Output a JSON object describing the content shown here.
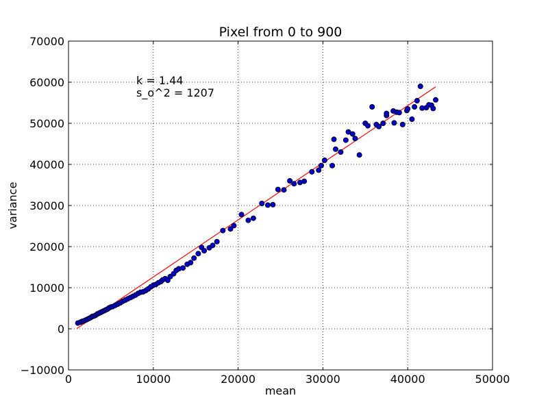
{
  "chart_data": {
    "type": "scatter",
    "title": "Pixel from 0 to 900",
    "xlabel": "mean",
    "ylabel": "variance",
    "xlim": [
      0,
      50000
    ],
    "ylim": [
      -10000,
      70000
    ],
    "xticks": [
      0,
      10000,
      20000,
      30000,
      40000,
      50000
    ],
    "yticks": [
      -10000,
      0,
      10000,
      20000,
      30000,
      40000,
      50000,
      60000,
      70000
    ],
    "grid": true,
    "annotations": [
      "k = 1.44",
      "s_o^2 = 1207"
    ],
    "annotation_anchor": {
      "x": 8000,
      "y": 59500
    },
    "marker_color": "#0000cc",
    "fit_color": "#ff0000",
    "fit_line": {
      "slope": 1.39,
      "intercept": -1300,
      "x_range": [
        1000,
        43300
      ]
    },
    "points": [
      [
        1100,
        1400
      ],
      [
        1400,
        1600
      ],
      [
        1600,
        1800
      ],
      [
        1800,
        1900
      ],
      [
        2000,
        2100
      ],
      [
        2200,
        2300
      ],
      [
        2400,
        2500
      ],
      [
        2600,
        2700
      ],
      [
        2800,
        3000
      ],
      [
        3000,
        3100
      ],
      [
        3200,
        3300
      ],
      [
        3400,
        3600
      ],
      [
        3600,
        3800
      ],
      [
        3800,
        4000
      ],
      [
        4000,
        4200
      ],
      [
        4200,
        4400
      ],
      [
        4400,
        4600
      ],
      [
        4600,
        4800
      ],
      [
        4800,
        5100
      ],
      [
        5000,
        5300
      ],
      [
        5200,
        5400
      ],
      [
        5500,
        5700
      ],
      [
        5800,
        6000
      ],
      [
        6100,
        6300
      ],
      [
        6400,
        6700
      ],
      [
        6700,
        7000
      ],
      [
        7000,
        7300
      ],
      [
        7300,
        7600
      ],
      [
        7600,
        7900
      ],
      [
        7900,
        8200
      ],
      [
        8200,
        8600
      ],
      [
        8500,
        8900
      ],
      [
        8800,
        9000
      ],
      [
        9100,
        9300
      ],
      [
        9400,
        9700
      ],
      [
        9700,
        10200
      ],
      [
        10000,
        10600
      ],
      [
        10300,
        10800
      ],
      [
        10600,
        11200
      ],
      [
        10900,
        11500
      ],
      [
        11100,
        11900
      ],
      [
        11400,
        12200
      ],
      [
        11700,
        11800
      ],
      [
        12000,
        12700
      ],
      [
        12400,
        13400
      ],
      [
        12700,
        14200
      ],
      [
        13000,
        14600
      ],
      [
        13500,
        14800
      ],
      [
        14000,
        15700
      ],
      [
        14400,
        16100
      ],
      [
        14800,
        17200
      ],
      [
        15300,
        18300
      ],
      [
        15700,
        19800
      ],
      [
        16000,
        19000
      ],
      [
        16600,
        19700
      ],
      [
        17000,
        20300
      ],
      [
        17500,
        21200
      ],
      [
        18200,
        23900
      ],
      [
        19100,
        24300
      ],
      [
        19500,
        25100
      ],
      [
        20400,
        27800
      ],
      [
        21200,
        26400
      ],
      [
        21800,
        26900
      ],
      [
        22800,
        30500
      ],
      [
        23500,
        30100
      ],
      [
        24100,
        30200
      ],
      [
        24700,
        33900
      ],
      [
        25400,
        33800
      ],
      [
        26100,
        36000
      ],
      [
        26600,
        35300
      ],
      [
        27300,
        35600
      ],
      [
        27800,
        35900
      ],
      [
        28700,
        38200
      ],
      [
        29500,
        38600
      ],
      [
        29800,
        39700
      ],
      [
        30200,
        41000
      ],
      [
        31100,
        39700
      ],
      [
        31300,
        46100
      ],
      [
        31500,
        43700
      ],
      [
        32100,
        43000
      ],
      [
        32700,
        45900
      ],
      [
        33000,
        47900
      ],
      [
        33500,
        47400
      ],
      [
        33800,
        46300
      ],
      [
        34300,
        42300
      ],
      [
        35000,
        50000
      ],
      [
        35300,
        49400
      ],
      [
        35800,
        54000
      ],
      [
        36300,
        49700
      ],
      [
        36600,
        49200
      ],
      [
        37100,
        50000
      ],
      [
        37500,
        51900
      ],
      [
        37500,
        52400
      ],
      [
        38300,
        53000
      ],
      [
        38400,
        50100
      ],
      [
        38700,
        52700
      ],
      [
        39000,
        52600
      ],
      [
        39400,
        49700
      ],
      [
        39900,
        53100
      ],
      [
        40000,
        53500
      ],
      [
        40500,
        51000
      ],
      [
        40800,
        54000
      ],
      [
        41100,
        55500
      ],
      [
        41500,
        59000
      ],
      [
        41700,
        53700
      ],
      [
        42200,
        53800
      ],
      [
        42500,
        54500
      ],
      [
        42800,
        54400
      ],
      [
        43000,
        53600
      ],
      [
        43300,
        55700
      ]
    ]
  }
}
